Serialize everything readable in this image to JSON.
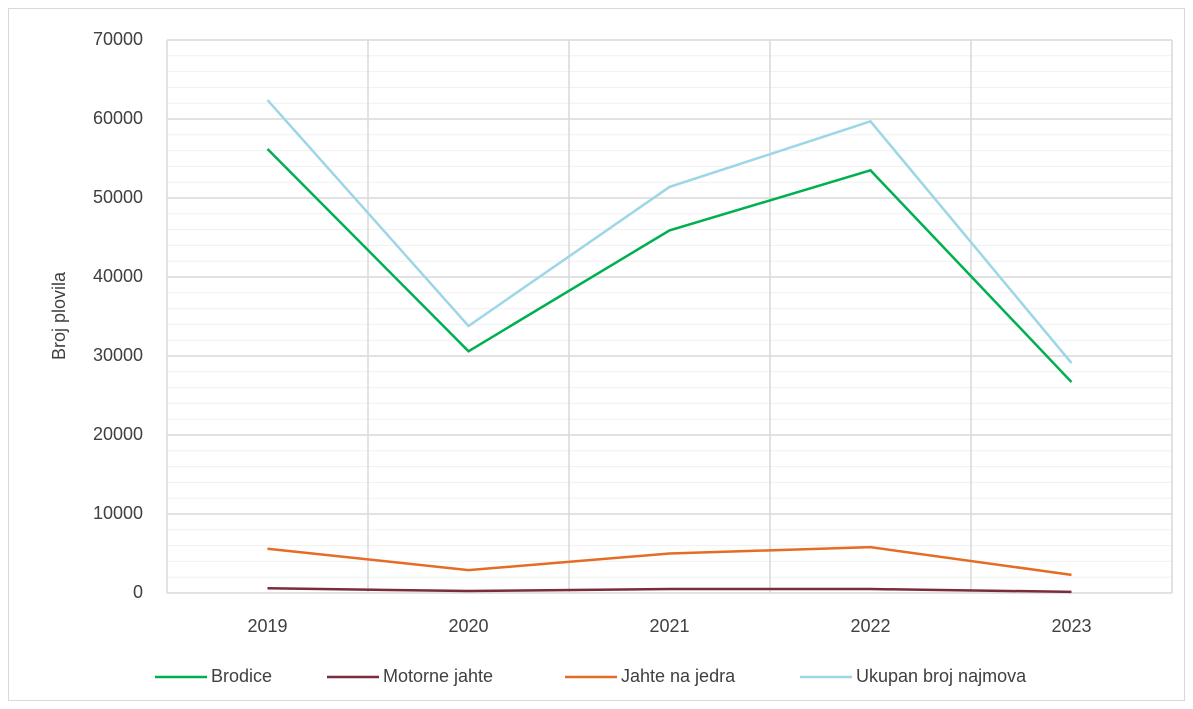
{
  "chart_data": {
    "type": "line",
    "y_axis_label": "Broj plovila",
    "categories": [
      "2019",
      "2020",
      "2021",
      "2022",
      "2023"
    ],
    "series": [
      {
        "name": "Brodice",
        "color": "#00b050",
        "values": [
          56200,
          30600,
          45900,
          53500,
          26700
        ]
      },
      {
        "name": "Motorne jahte",
        "color": "#7b2c3b",
        "values": [
          600,
          250,
          500,
          500,
          150
        ]
      },
      {
        "name": "Jahte na jedra",
        "color": "#e46c24",
        "values": [
          5600,
          2900,
          5000,
          5800,
          2300
        ]
      },
      {
        "name": "Ukupan broj najmova",
        "color": "#9dd6e6",
        "values": [
          62400,
          33800,
          51400,
          59700,
          29100
        ]
      }
    ],
    "ylim": [
      0,
      70000
    ],
    "yticks": [
      0,
      10000,
      20000,
      30000,
      40000,
      50000,
      60000,
      70000
    ],
    "minor_yticks": [
      2000,
      4000,
      6000,
      8000,
      12000,
      14000,
      16000,
      18000,
      22000,
      24000,
      26000,
      28000,
      32000,
      34000,
      36000,
      38000,
      42000,
      44000,
      46000,
      48000,
      52000,
      54000,
      56000,
      58000,
      62000,
      64000,
      66000,
      68000
    ],
    "grid": true,
    "legend": "bottom"
  }
}
